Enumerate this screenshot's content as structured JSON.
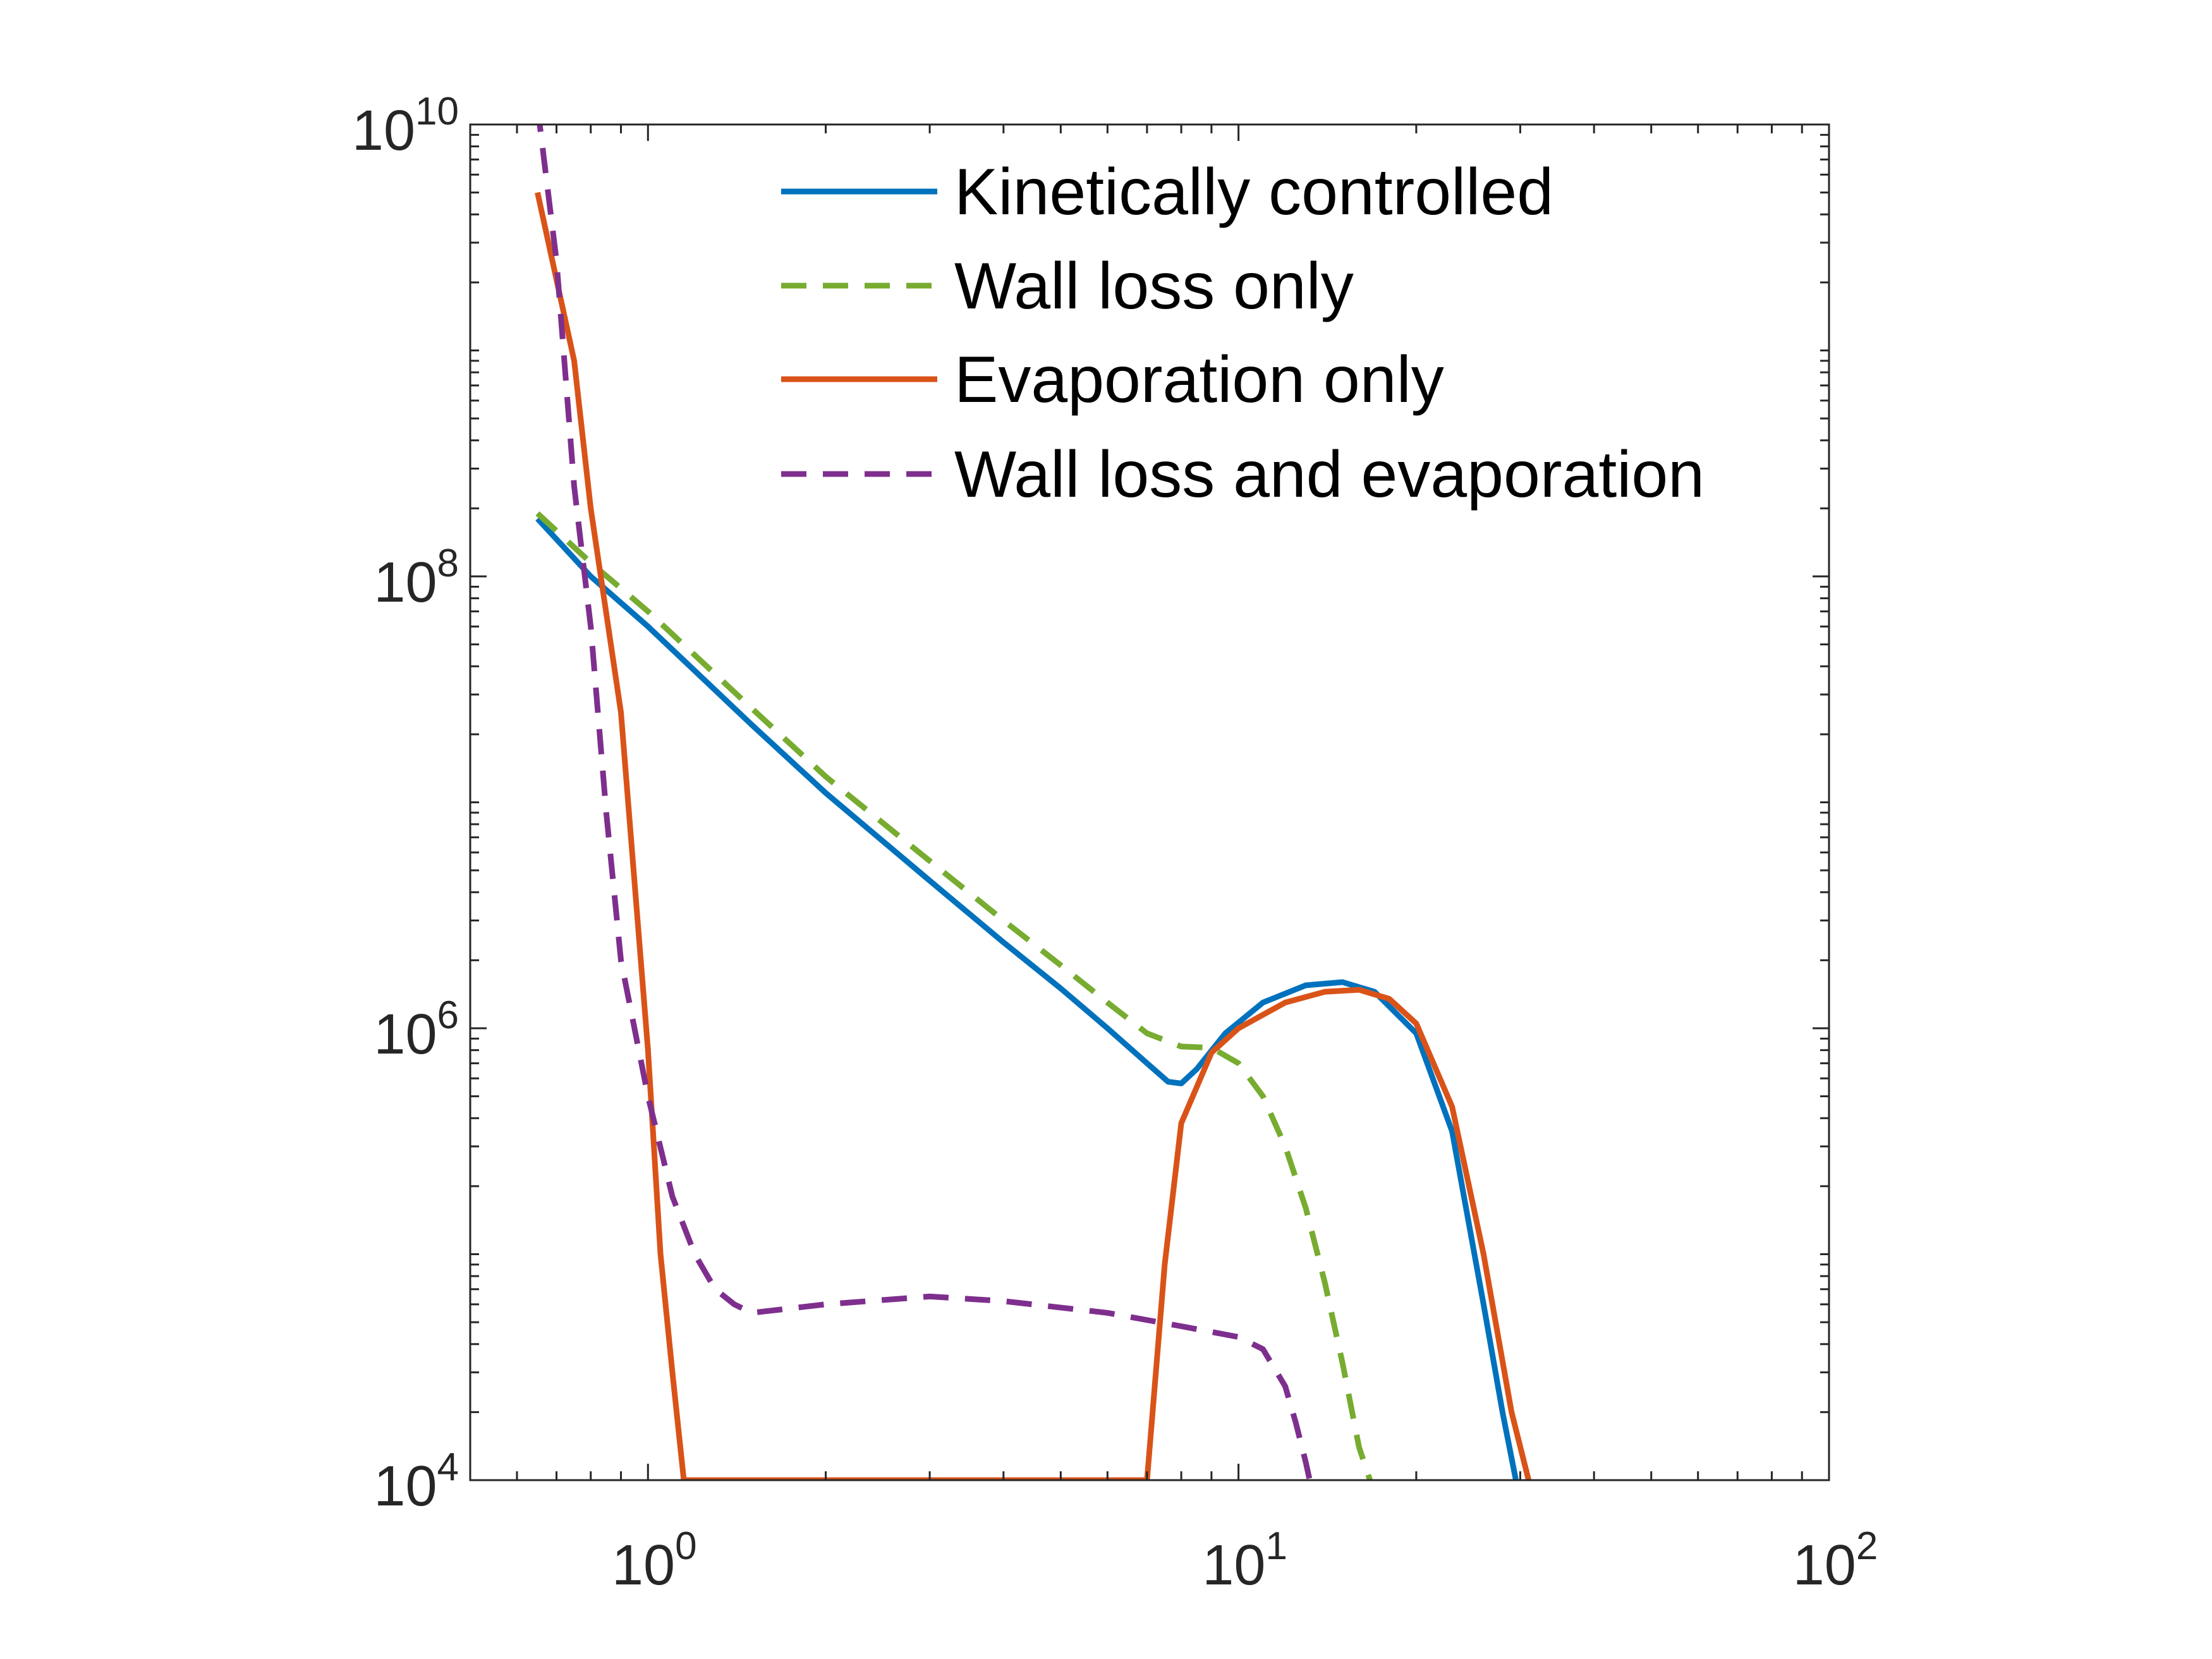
{
  "chart_data": {
    "type": "line",
    "title": "",
    "xlabel": "",
    "ylabel": "",
    "x_scale": "log",
    "y_scale": "log",
    "xlim": [
      0.5,
      100
    ],
    "ylim": [
      10000,
      10000000000
    ],
    "x_ticks": [
      {
        "base": "10",
        "exp": "0",
        "value": 1
      },
      {
        "base": "10",
        "exp": "1",
        "value": 10
      },
      {
        "base": "10",
        "exp": "2",
        "value": 100
      }
    ],
    "y_ticks": [
      {
        "base": "10",
        "exp": "4",
        "value": 10000
      },
      {
        "base": "10",
        "exp": "6",
        "value": 1000000
      },
      {
        "base": "10",
        "exp": "8",
        "value": 100000000
      },
      {
        "base": "10",
        "exp": "10",
        "value": 10000000000
      }
    ],
    "grid": false,
    "legend_position": "top-right",
    "series": [
      {
        "name": "Kinetically controlled",
        "color": "#0072BD",
        "dash": "solid",
        "points": [
          [
            0.65,
            180000000
          ],
          [
            0.8,
            100000000
          ],
          [
            1.0,
            60000000
          ],
          [
            1.5,
            22000000
          ],
          [
            2.0,
            11000000
          ],
          [
            3.0,
            4500000
          ],
          [
            4.0,
            2400000
          ],
          [
            5.0,
            1500000
          ],
          [
            6.0,
            1000000
          ],
          [
            7.0,
            700000
          ],
          [
            7.6,
            580000
          ],
          [
            8.0,
            570000
          ],
          [
            8.5,
            660000
          ],
          [
            9.5,
            950000
          ],
          [
            11.0,
            1300000
          ],
          [
            13.0,
            1550000
          ],
          [
            15.0,
            1600000
          ],
          [
            17.0,
            1450000
          ],
          [
            20.0,
            950000
          ],
          [
            23.0,
            350000
          ],
          [
            26.0,
            60000
          ],
          [
            28.0,
            20000
          ],
          [
            29.5,
            10000
          ]
        ]
      },
      {
        "name": "Wall loss only",
        "color": "#77AC30",
        "dash": "dashed",
        "points": [
          [
            0.65,
            190000000
          ],
          [
            0.8,
            115000000
          ],
          [
            1.0,
            70000000
          ],
          [
            1.5,
            26000000
          ],
          [
            2.0,
            13000000
          ],
          [
            3.0,
            5500000
          ],
          [
            4.0,
            3000000
          ],
          [
            5.0,
            1900000
          ],
          [
            6.0,
            1300000
          ],
          [
            7.0,
            950000
          ],
          [
            8.0,
            830000
          ],
          [
            9.0,
            820000
          ],
          [
            10.0,
            700000
          ],
          [
            11.0,
            500000
          ],
          [
            12.0,
            300000
          ],
          [
            13.0,
            160000
          ],
          [
            14.0,
            75000
          ],
          [
            15.0,
            33000
          ],
          [
            16.0,
            14000
          ],
          [
            16.7,
            10000
          ]
        ]
      },
      {
        "name": "Evaporation only",
        "color": "#D95319",
        "dash": "solid",
        "points": [
          [
            0.65,
            5000000000
          ],
          [
            0.75,
            900000000
          ],
          [
            0.8,
            200000000
          ],
          [
            0.9,
            25000000
          ],
          [
            1.0,
            800000
          ],
          [
            1.05,
            100000
          ],
          [
            1.1,
            30000
          ],
          [
            1.15,
            10000
          ],
          [
            7.0,
            10000
          ],
          [
            7.5,
            90000
          ],
          [
            8.0,
            380000
          ],
          [
            9.0,
            780000
          ],
          [
            10.0,
            1000000
          ],
          [
            12.0,
            1300000
          ],
          [
            14.0,
            1450000
          ],
          [
            16.0,
            1480000
          ],
          [
            18.0,
            1350000
          ],
          [
            20.0,
            1050000
          ],
          [
            23.0,
            450000
          ],
          [
            26.0,
            100000
          ],
          [
            29.0,
            20000
          ],
          [
            31.0,
            10000
          ]
        ]
      },
      {
        "name": "Wall loss and evaporation",
        "color": "#7E2F8E",
        "dash": "dashed",
        "points": [
          [
            0.65,
            12000000000
          ],
          [
            0.7,
            2500000000
          ],
          [
            0.75,
            250000000
          ],
          [
            0.8,
            60000000
          ],
          [
            0.85,
            9000000
          ],
          [
            0.9,
            2000000
          ],
          [
            1.0,
            500000
          ],
          [
            1.1,
            180000
          ],
          [
            1.2,
            100000
          ],
          [
            1.3,
            70000
          ],
          [
            1.4,
            60000
          ],
          [
            1.5,
            55000
          ],
          [
            2.0,
            60000
          ],
          [
            3.0,
            65000
          ],
          [
            4.0,
            62000
          ],
          [
            6.0,
            55000
          ],
          [
            8.0,
            48000
          ],
          [
            10.0,
            43000
          ],
          [
            11.0,
            38000
          ],
          [
            12.0,
            26000
          ],
          [
            12.5,
            18000
          ],
          [
            13.0,
            12000
          ],
          [
            13.2,
            10000
          ]
        ]
      }
    ]
  }
}
